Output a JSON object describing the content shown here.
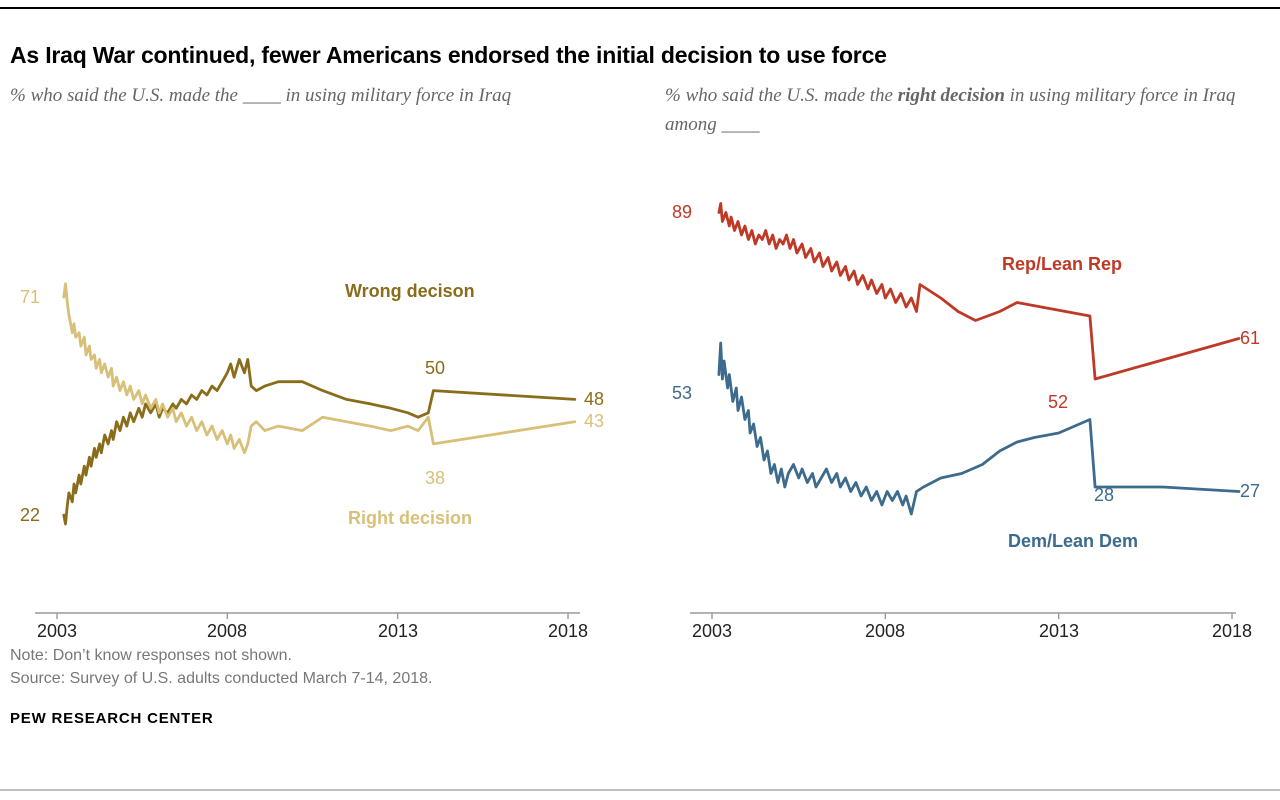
{
  "page": {
    "title": "As Iraq War continued, fewer Americans endorsed the initial decision to use force",
    "note": "Note: Don’t know responses not shown.",
    "source": "Source: Survey of U.S. adults conducted March 7-14, 2018.",
    "brand": "PEW RESEARCH CENTER"
  },
  "colors": {
    "wrong": "#8a6d1a",
    "right": "#d8c078",
    "rep": "#bf3927",
    "dem": "#3d6b8d",
    "axis": "#9a9a9a",
    "subtitle": "#666666",
    "note": "#75787b",
    "tick": "#222222"
  },
  "chart_data": [
    {
      "type": "line",
      "subtitle": "% who said the U.S. made the ____ in using military force in Iraq",
      "x_ticks": [
        "2003",
        "2008",
        "2013",
        "2018"
      ],
      "xlim": [
        2003,
        2018.4
      ],
      "ylim": [
        0,
        100
      ],
      "grid": false,
      "legend_position": "inline-labels",
      "labels": {
        "start_right": "71",
        "start_wrong": "22",
        "series_wrong": "Wrong decison",
        "series_right": "Right decision",
        "mid_wrong": "50",
        "mid_right": "38",
        "end_wrong": "48",
        "end_right": "43"
      },
      "series": [
        {
          "name": "Wrong decison",
          "color_key": "wrong",
          "points": [
            [
              2003.2,
              22
            ],
            [
              2003.25,
              20
            ],
            [
              2003.3,
              24
            ],
            [
              2003.35,
              27
            ],
            [
              2003.45,
              25
            ],
            [
              2003.5,
              29
            ],
            [
              2003.55,
              27
            ],
            [
              2003.65,
              31
            ],
            [
              2003.7,
              29
            ],
            [
              2003.8,
              33
            ],
            [
              2003.85,
              31
            ],
            [
              2003.95,
              35
            ],
            [
              2004,
              33
            ],
            [
              2004.1,
              37
            ],
            [
              2004.15,
              35
            ],
            [
              2004.25,
              38
            ],
            [
              2004.3,
              36
            ],
            [
              2004.4,
              40
            ],
            [
              2004.5,
              38
            ],
            [
              2004.6,
              41
            ],
            [
              2004.65,
              39
            ],
            [
              2004.75,
              43
            ],
            [
              2004.85,
              41
            ],
            [
              2004.95,
              44
            ],
            [
              2005.05,
              42
            ],
            [
              2005.15,
              45
            ],
            [
              2005.25,
              43
            ],
            [
              2005.4,
              46
            ],
            [
              2005.5,
              44
            ],
            [
              2005.6,
              47
            ],
            [
              2005.75,
              45
            ],
            [
              2005.9,
              47
            ],
            [
              2006,
              44
            ],
            [
              2006.1,
              46
            ],
            [
              2006.25,
              45
            ],
            [
              2006.4,
              47
            ],
            [
              2006.5,
              46
            ],
            [
              2006.65,
              48
            ],
            [
              2006.8,
              47
            ],
            [
              2006.95,
              49
            ],
            [
              2007.1,
              48
            ],
            [
              2007.25,
              50
            ],
            [
              2007.4,
              49
            ],
            [
              2007.55,
              51
            ],
            [
              2007.7,
              50
            ],
            [
              2007.85,
              52
            ],
            [
              2008,
              54
            ],
            [
              2008.1,
              56
            ],
            [
              2008.2,
              53
            ],
            [
              2008.35,
              57
            ],
            [
              2008.5,
              54
            ],
            [
              2008.6,
              57
            ],
            [
              2008.7,
              51
            ],
            [
              2008.85,
              50
            ],
            [
              2009.1,
              51
            ],
            [
              2009.5,
              52
            ],
            [
              2010.2,
              52
            ],
            [
              2010.8,
              50
            ],
            [
              2011.5,
              48
            ],
            [
              2012.2,
              47
            ],
            [
              2012.8,
              46
            ],
            [
              2013.3,
              45
            ],
            [
              2013.6,
              44
            ],
            [
              2013.9,
              45
            ],
            [
              2014.05,
              50
            ],
            [
              2018.2,
              48
            ]
          ]
        },
        {
          "name": "Right decision",
          "color_key": "right",
          "points": [
            [
              2003.2,
              71
            ],
            [
              2003.25,
              74
            ],
            [
              2003.3,
              70
            ],
            [
              2003.35,
              67
            ],
            [
              2003.45,
              63
            ],
            [
              2003.5,
              65
            ],
            [
              2003.55,
              62
            ],
            [
              2003.65,
              63
            ],
            [
              2003.7,
              60
            ],
            [
              2003.8,
              62
            ],
            [
              2003.85,
              58
            ],
            [
              2003.95,
              60
            ],
            [
              2004,
              57
            ],
            [
              2004.1,
              58
            ],
            [
              2004.15,
              55
            ],
            [
              2004.25,
              57
            ],
            [
              2004.3,
              54
            ],
            [
              2004.4,
              56
            ],
            [
              2004.5,
              53
            ],
            [
              2004.6,
              55
            ],
            [
              2004.65,
              51
            ],
            [
              2004.75,
              53
            ],
            [
              2004.85,
              50
            ],
            [
              2004.95,
              52
            ],
            [
              2005.05,
              49
            ],
            [
              2005.15,
              51
            ],
            [
              2005.25,
              48
            ],
            [
              2005.4,
              50
            ],
            [
              2005.5,
              47
            ],
            [
              2005.6,
              49
            ],
            [
              2005.75,
              46
            ],
            [
              2005.9,
              48
            ],
            [
              2006,
              45
            ],
            [
              2006.1,
              47
            ],
            [
              2006.25,
              44
            ],
            [
              2006.4,
              46
            ],
            [
              2006.5,
              43
            ],
            [
              2006.65,
              45
            ],
            [
              2006.8,
              42
            ],
            [
              2006.95,
              44
            ],
            [
              2007.1,
              41
            ],
            [
              2007.25,
              43
            ],
            [
              2007.4,
              40
            ],
            [
              2007.55,
              42
            ],
            [
              2007.7,
              39
            ],
            [
              2007.85,
              41
            ],
            [
              2008,
              38
            ],
            [
              2008.1,
              40
            ],
            [
              2008.2,
              37
            ],
            [
              2008.35,
              39
            ],
            [
              2008.5,
              36
            ],
            [
              2008.6,
              38
            ],
            [
              2008.7,
              42
            ],
            [
              2008.85,
              43
            ],
            [
              2009.1,
              41
            ],
            [
              2009.5,
              42
            ],
            [
              2010.2,
              41
            ],
            [
              2010.8,
              44
            ],
            [
              2011.5,
              43
            ],
            [
              2012.2,
              42
            ],
            [
              2012.8,
              41
            ],
            [
              2013.3,
              42
            ],
            [
              2013.6,
              41
            ],
            [
              2013.9,
              44
            ],
            [
              2014.05,
              38
            ],
            [
              2018.2,
              43
            ]
          ]
        }
      ]
    },
    {
      "type": "line",
      "subtitle_pre": "% who said the U.S. made the ",
      "subtitle_bold": "right decision",
      "subtitle_post": " in using military force in Iraq among ____",
      "x_ticks": [
        "2003",
        "2008",
        "2013",
        "2018"
      ],
      "xlim": [
        2003,
        2018.4
      ],
      "ylim": [
        0,
        100
      ],
      "grid": false,
      "legend_position": "inline-labels",
      "labels": {
        "start_rep": "89",
        "start_dem": "53",
        "series_rep": "Rep/Lean Rep",
        "series_dem": "Dem/Lean Dem",
        "mid_rep": "52",
        "mid_dem": "28",
        "end_rep": "61",
        "end_dem": "27"
      },
      "series": [
        {
          "name": "Rep/Lean Rep",
          "color_key": "rep",
          "points": [
            [
              2003.2,
              89
            ],
            [
              2003.25,
              91
            ],
            [
              2003.3,
              87
            ],
            [
              2003.4,
              89
            ],
            [
              2003.5,
              86
            ],
            [
              2003.55,
              88
            ],
            [
              2003.65,
              85
            ],
            [
              2003.75,
              87
            ],
            [
              2003.85,
              84
            ],
            [
              2003.95,
              86
            ],
            [
              2004.05,
              83
            ],
            [
              2004.15,
              85
            ],
            [
              2004.25,
              82
            ],
            [
              2004.35,
              84
            ],
            [
              2004.45,
              83
            ],
            [
              2004.55,
              85
            ],
            [
              2004.65,
              82
            ],
            [
              2004.75,
              84
            ],
            [
              2004.85,
              81
            ],
            [
              2004.95,
              83
            ],
            [
              2005.05,
              82
            ],
            [
              2005.15,
              84
            ],
            [
              2005.25,
              81
            ],
            [
              2005.35,
              83
            ],
            [
              2005.45,
              80
            ],
            [
              2005.6,
              82
            ],
            [
              2005.7,
              79
            ],
            [
              2005.85,
              81
            ],
            [
              2005.95,
              78
            ],
            [
              2006.1,
              80
            ],
            [
              2006.2,
              77
            ],
            [
              2006.35,
              79
            ],
            [
              2006.45,
              76
            ],
            [
              2006.6,
              78
            ],
            [
              2006.7,
              75
            ],
            [
              2006.85,
              77
            ],
            [
              2006.95,
              74
            ],
            [
              2007.1,
              76
            ],
            [
              2007.2,
              73
            ],
            [
              2007.35,
              75
            ],
            [
              2007.5,
              72
            ],
            [
              2007.6,
              74
            ],
            [
              2007.75,
              71
            ],
            [
              2007.9,
              73
            ],
            [
              2008,
              70
            ],
            [
              2008.15,
              72
            ],
            [
              2008.3,
              69
            ],
            [
              2008.45,
              71
            ],
            [
              2008.6,
              68
            ],
            [
              2008.75,
              70
            ],
            [
              2008.9,
              67
            ],
            [
              2009,
              73
            ],
            [
              2009.2,
              72
            ],
            [
              2009.6,
              70
            ],
            [
              2010.1,
              67
            ],
            [
              2010.6,
              65
            ],
            [
              2011.3,
              67
            ],
            [
              2011.8,
              69
            ],
            [
              2012.5,
              68
            ],
            [
              2013.2,
              67
            ],
            [
              2013.9,
              66
            ],
            [
              2014.05,
              52
            ],
            [
              2018.2,
              61
            ]
          ]
        },
        {
          "name": "Dem/Lean Dem",
          "color_key": "dem",
          "points": [
            [
              2003.2,
              53
            ],
            [
              2003.25,
              60
            ],
            [
              2003.3,
              52
            ],
            [
              2003.35,
              56
            ],
            [
              2003.45,
              50
            ],
            [
              2003.5,
              53
            ],
            [
              2003.6,
              47
            ],
            [
              2003.7,
              50
            ],
            [
              2003.75,
              45
            ],
            [
              2003.85,
              48
            ],
            [
              2003.95,
              43
            ],
            [
              2004.05,
              45
            ],
            [
              2004.1,
              40
            ],
            [
              2004.2,
              42
            ],
            [
              2004.3,
              37
            ],
            [
              2004.4,
              39
            ],
            [
              2004.5,
              34
            ],
            [
              2004.6,
              36
            ],
            [
              2004.7,
              31
            ],
            [
              2004.8,
              33
            ],
            [
              2004.9,
              29
            ],
            [
              2005,
              32
            ],
            [
              2005.1,
              28
            ],
            [
              2005.2,
              31
            ],
            [
              2005.35,
              33
            ],
            [
              2005.5,
              30
            ],
            [
              2005.6,
              32
            ],
            [
              2005.75,
              29
            ],
            [
              2005.9,
              31
            ],
            [
              2006,
              28
            ],
            [
              2006.15,
              30
            ],
            [
              2006.3,
              32
            ],
            [
              2006.45,
              29
            ],
            [
              2006.6,
              31
            ],
            [
              2006.7,
              28
            ],
            [
              2006.85,
              30
            ],
            [
              2007,
              27
            ],
            [
              2007.15,
              29
            ],
            [
              2007.3,
              26
            ],
            [
              2007.45,
              28
            ],
            [
              2007.6,
              25
            ],
            [
              2007.75,
              27
            ],
            [
              2007.9,
              24
            ],
            [
              2008.05,
              27
            ],
            [
              2008.2,
              25
            ],
            [
              2008.35,
              27
            ],
            [
              2008.5,
              24
            ],
            [
              2008.6,
              26
            ],
            [
              2008.75,
              22
            ],
            [
              2008.9,
              27
            ],
            [
              2009.1,
              28
            ],
            [
              2009.6,
              30
            ],
            [
              2010.2,
              31
            ],
            [
              2010.8,
              33
            ],
            [
              2011.3,
              36
            ],
            [
              2011.8,
              38
            ],
            [
              2012.3,
              39
            ],
            [
              2013,
              40
            ],
            [
              2013.9,
              43
            ],
            [
              2014.05,
              28
            ],
            [
              2016,
              28
            ],
            [
              2018.2,
              27
            ]
          ]
        }
      ]
    }
  ]
}
